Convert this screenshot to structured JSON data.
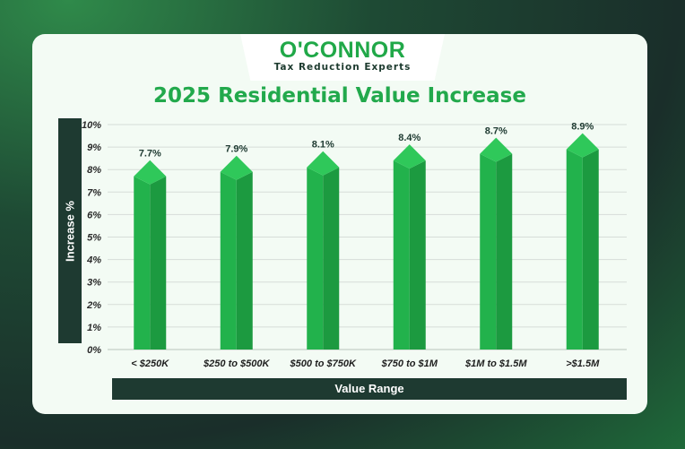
{
  "brand": {
    "name": "O'CONNOR",
    "tagline": "Tax Reduction Experts"
  },
  "chart_data": {
    "type": "bar",
    "title": "2025 Residential Value Increase",
    "xlabel": "Value Range",
    "ylabel": "Increase %",
    "categories": [
      "< $250K",
      "$250 to $500K",
      "$500 to $750K",
      "$750 to $1M",
      "$1M to $1.5M",
      ">$1.5M"
    ],
    "values": [
      7.7,
      7.9,
      8.1,
      8.4,
      8.7,
      8.9
    ],
    "data_labels": [
      "7.7%",
      "7.9%",
      "8.1%",
      "8.4%",
      "8.7%",
      "8.9%"
    ],
    "yticks": [
      "0%",
      "1%",
      "2%",
      "3%",
      "4%",
      "5%",
      "6%",
      "7%",
      "8%",
      "9%",
      "10%"
    ],
    "ylim": [
      0,
      10
    ],
    "grid": true,
    "bar_color": "#22b24c",
    "bar_color_dark": "#1c9a40",
    "bar_top_color": "#2fc85a"
  }
}
